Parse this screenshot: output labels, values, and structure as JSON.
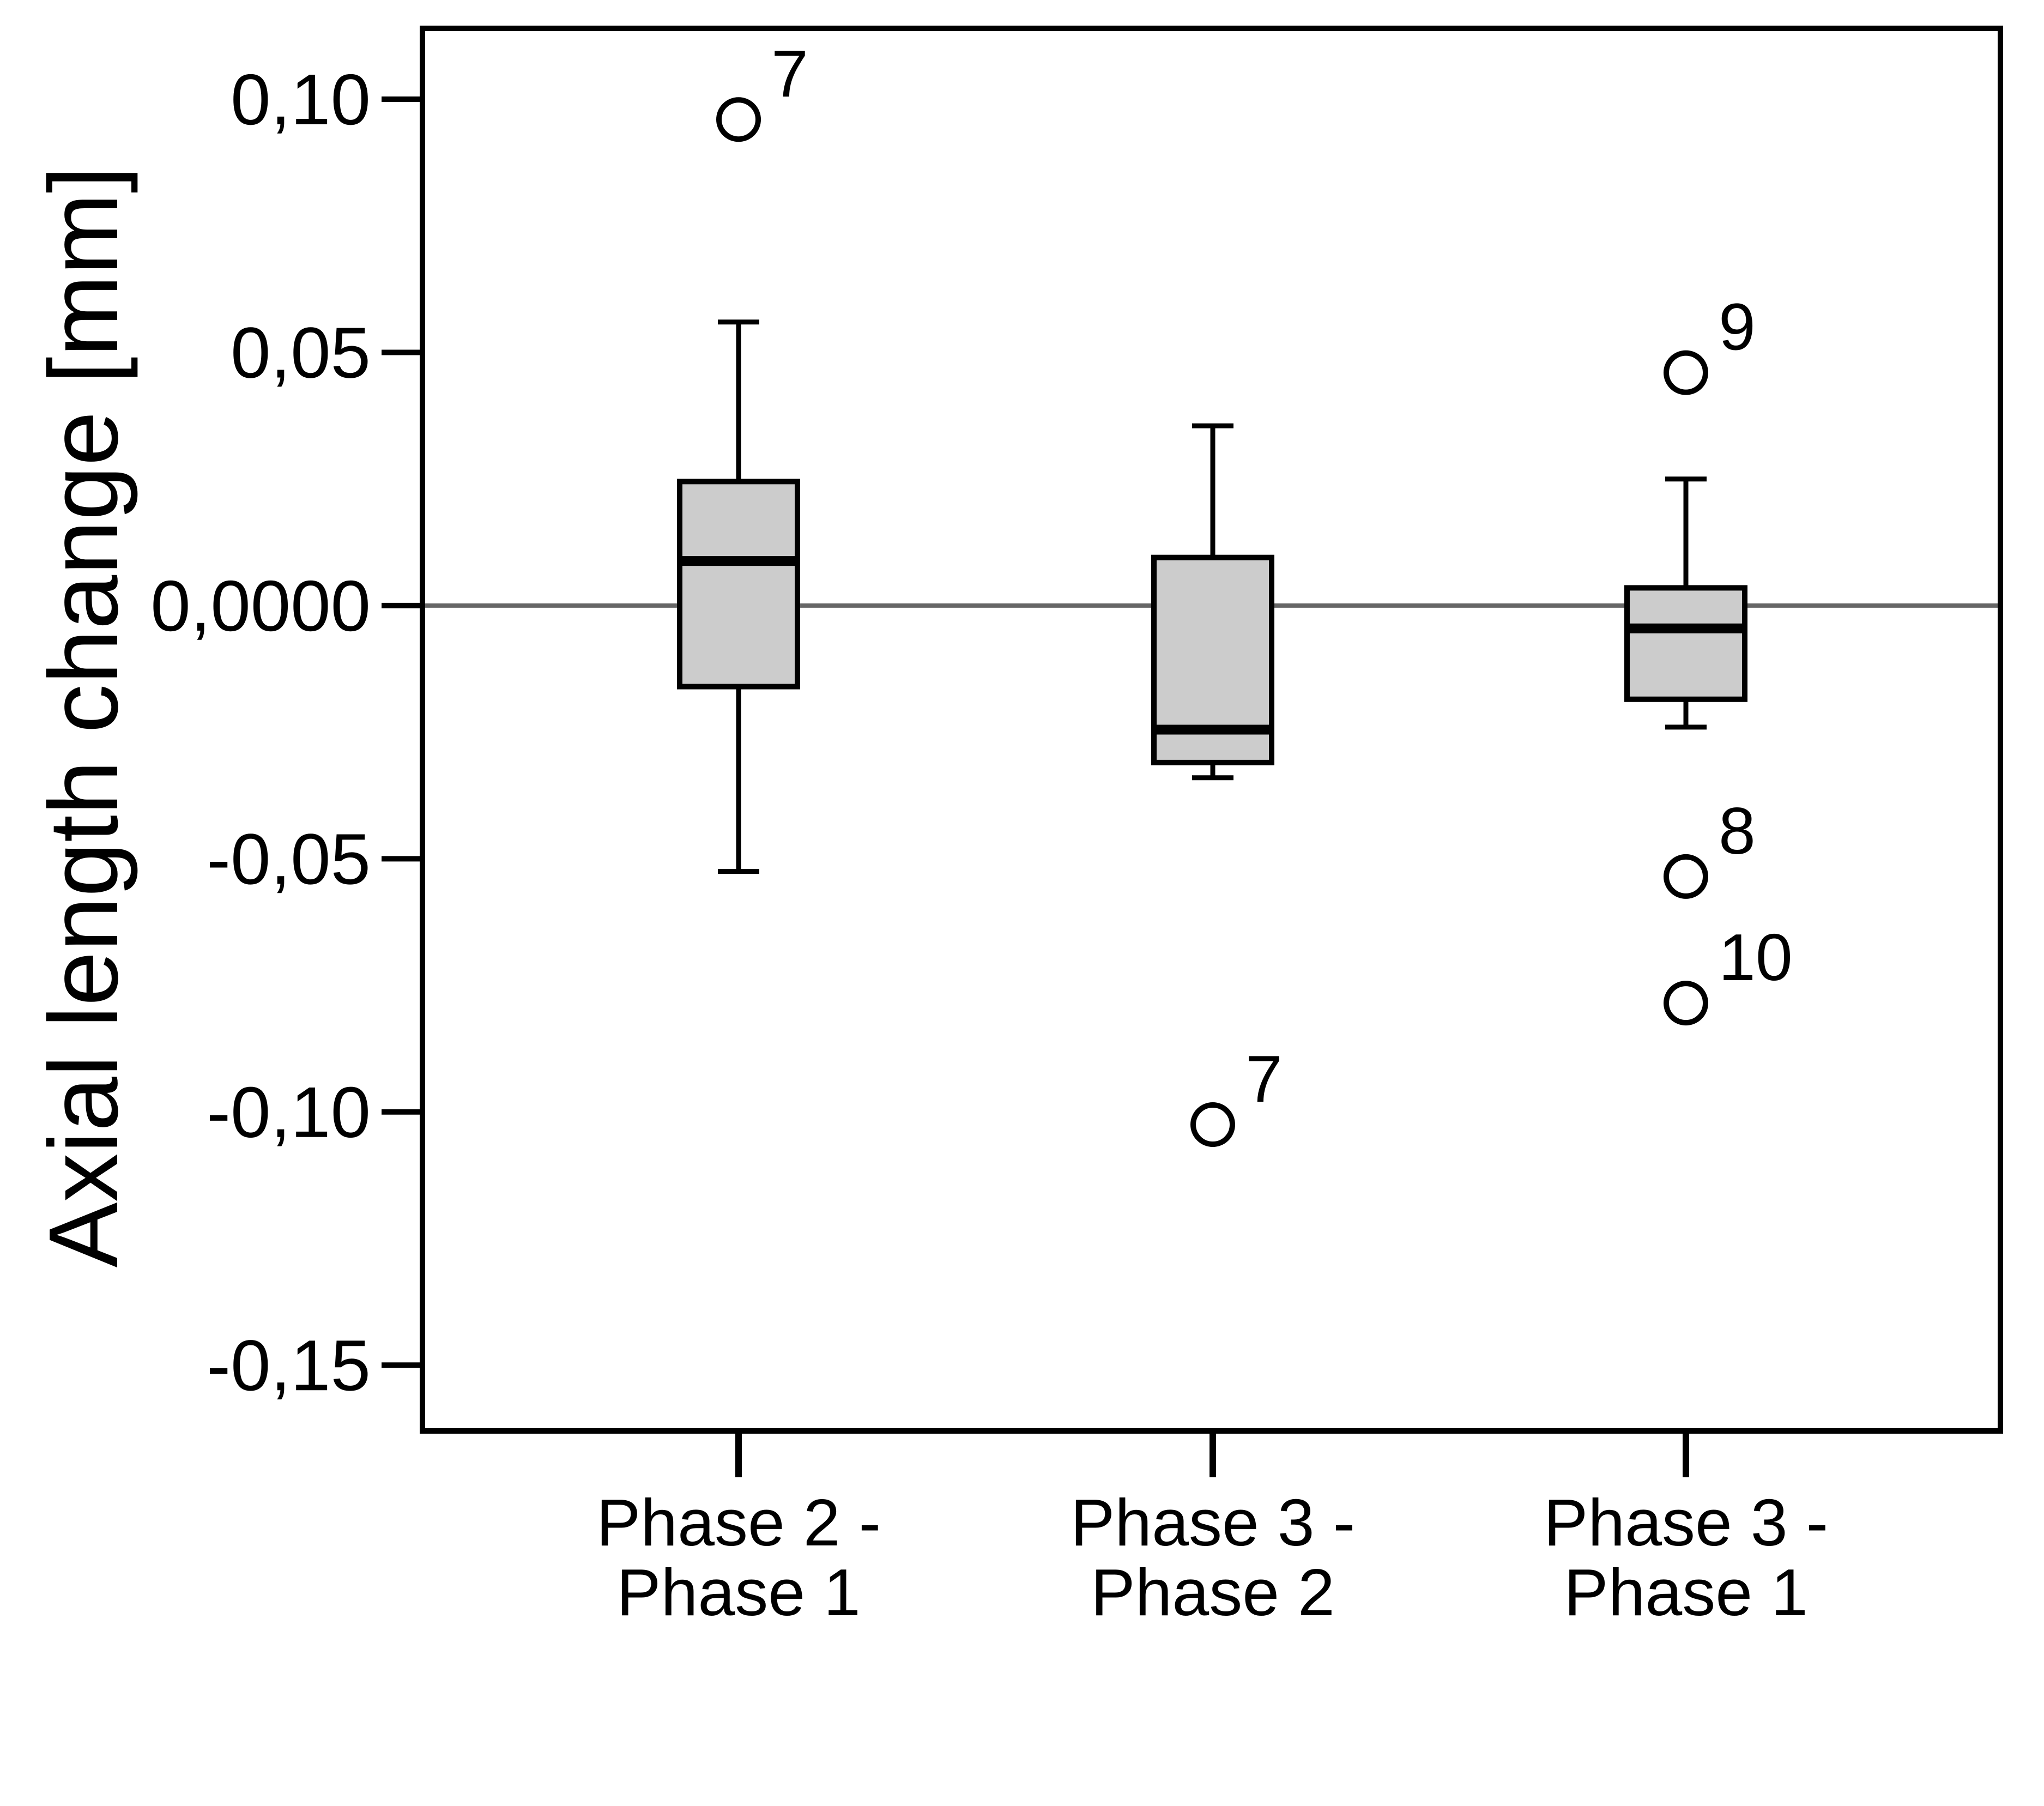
{
  "chart_data": {
    "type": "boxplot",
    "ylabel": "Axial length change [mm]",
    "xlabel": "",
    "ylim": [
      -0.163,
      0.114
    ],
    "yticks": [
      {
        "value": 0.1,
        "label": "0,10"
      },
      {
        "value": 0.05,
        "label": "0,05"
      },
      {
        "value": 0.0,
        "label": "0,0000"
      },
      {
        "value": -0.05,
        "label": "-0,05"
      },
      {
        "value": -0.1,
        "label": "-0,10"
      },
      {
        "value": -0.15,
        "label": "-0,15"
      }
    ],
    "reference_line": {
      "value": 0.0,
      "color": "#666666"
    },
    "grid": false,
    "box_fill": "#cccccc",
    "line_color": "#000000",
    "categories": [
      {
        "label_lines": [
          "Phase 2 -",
          "Phase 1"
        ],
        "whisker_low": -0.0525,
        "q1": -0.016,
        "median": 0.0088,
        "q3": 0.0245,
        "whisker_high": 0.056,
        "outliers": [
          {
            "value": 0.096,
            "label": "7"
          }
        ]
      },
      {
        "label_lines": [
          "Phase 3 -",
          "Phase 2"
        ],
        "whisker_low": -0.034,
        "q1": -0.031,
        "median": -0.0245,
        "q3": 0.0095,
        "whisker_high": 0.0355,
        "outliers": [
          {
            "value": -0.1025,
            "label": "7"
          }
        ]
      },
      {
        "label_lines": [
          "Phase 3 -",
          "Phase 1"
        ],
        "whisker_low": -0.024,
        "q1": -0.0185,
        "median": -0.0045,
        "q3": 0.0035,
        "whisker_high": 0.025,
        "outliers": [
          {
            "value": 0.046,
            "label": "9"
          },
          {
            "value": -0.0535,
            "label": "8"
          },
          {
            "value": -0.0785,
            "label": "10"
          }
        ]
      }
    ]
  }
}
